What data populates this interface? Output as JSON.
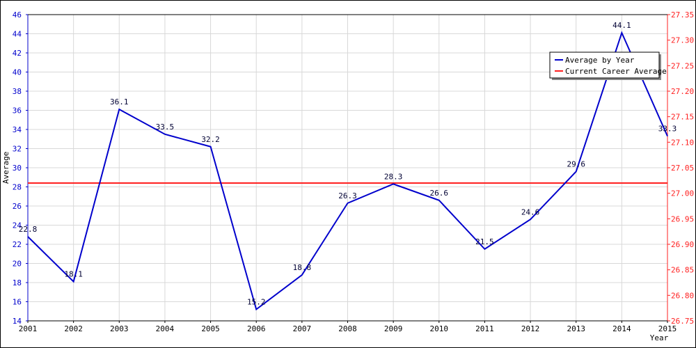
{
  "chart_data": {
    "type": "line",
    "x": [
      2001,
      2002,
      2003,
      2004,
      2005,
      2006,
      2007,
      2008,
      2009,
      2010,
      2011,
      2012,
      2013,
      2014,
      2015
    ],
    "series": [
      {
        "name": "Average by Year",
        "values": [
          22.8,
          18.1,
          36.1,
          33.5,
          32.2,
          15.2,
          18.8,
          26.3,
          28.3,
          26.6,
          21.5,
          24.6,
          29.6,
          44.1,
          33.3
        ],
        "labels": [
          "22.8",
          "18.1",
          "36.1",
          "33.5",
          "32.2",
          "15.2",
          "18.8",
          "26.3",
          "28.3",
          "26.6",
          "21.5",
          "24.6",
          "29.6",
          "44.1",
          "33.3"
        ],
        "color": "#0000cc"
      },
      {
        "name": "Current Career Average",
        "value": 27.02,
        "axis": "right",
        "color": "#ff2020"
      }
    ],
    "x_ticks": [
      "2001",
      "2002",
      "2003",
      "2004",
      "2005",
      "2006",
      "2007",
      "2008",
      "2009",
      "2010",
      "2011",
      "2012",
      "2013",
      "2014",
      "2015"
    ],
    "y_ticks_left": [
      "14",
      "16",
      "18",
      "20",
      "22",
      "24",
      "26",
      "28",
      "30",
      "32",
      "34",
      "36",
      "38",
      "40",
      "42",
      "44",
      "46"
    ],
    "y_ticks_right": [
      "26.75",
      "26.80",
      "26.85",
      "26.90",
      "26.95",
      "27.00",
      "27.05",
      "27.10",
      "27.15",
      "27.20",
      "27.25",
      "27.30",
      "27.35"
    ],
    "xlim": [
      2001,
      2015
    ],
    "ylim_left": [
      14,
      46
    ],
    "ylim_right": [
      26.75,
      27.35
    ],
    "xlabel": "Year",
    "ylabel": "Average",
    "grid": true,
    "legend_position": "top-right",
    "left_axis_color": "#0000cc",
    "right_axis_color": "#ff2020"
  }
}
